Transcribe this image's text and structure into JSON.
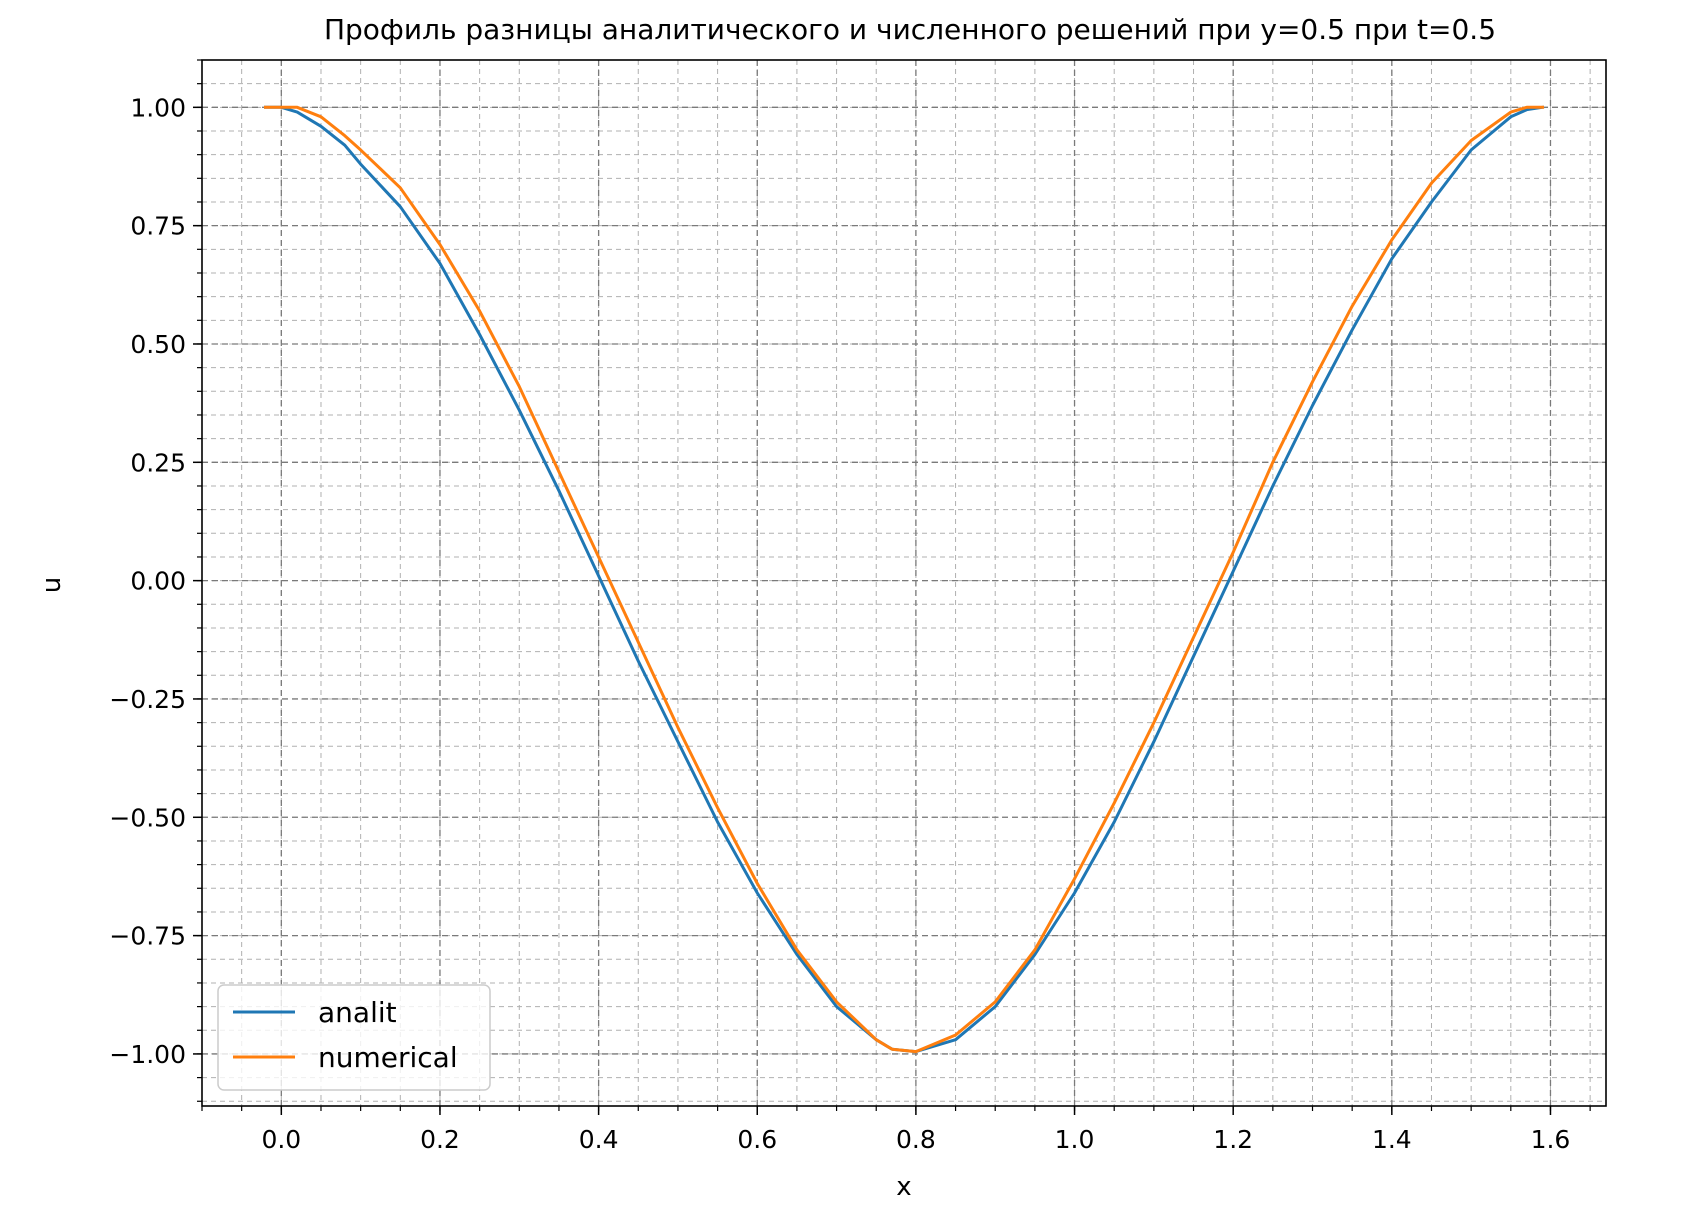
{
  "chart_data": {
    "type": "line",
    "title": "Профиль разницы аналитического и численного решений при y=0.5  при t=0.5",
    "xlabel": "x",
    "ylabel": "u",
    "xlim": [
      -0.1,
      1.67
    ],
    "ylim": [
      -1.11,
      1.1
    ],
    "x_ticks": [
      0.0,
      0.2,
      0.4,
      0.6,
      0.8,
      1.0,
      1.2,
      1.4,
      1.6
    ],
    "x_tick_labels": [
      "0.0",
      "0.2",
      "0.4",
      "0.6",
      "0.8",
      "1.0",
      "1.2",
      "1.4",
      "1.6"
    ],
    "y_ticks": [
      1.0,
      0.75,
      0.5,
      0.25,
      0.0,
      -0.25,
      -0.5,
      -0.75,
      -1.0
    ],
    "y_tick_labels": [
      "1.00",
      "0.75",
      "0.50",
      "0.25",
      "0.00",
      "−0.25",
      "−0.50",
      "−0.75",
      "−1.00"
    ],
    "x_minor_step": 0.05,
    "y_minor_step": 0.05,
    "grid": true,
    "grid_style": "dashed",
    "legend_position": "lower-left",
    "series": [
      {
        "name": "analit",
        "color": "#1f77b4",
        "x": [
          -0.02,
          0.0,
          0.02,
          0.05,
          0.08,
          0.1,
          0.15,
          0.2,
          0.25,
          0.3,
          0.35,
          0.4,
          0.45,
          0.5,
          0.55,
          0.6,
          0.65,
          0.7,
          0.75,
          0.77,
          0.8,
          0.85,
          0.9,
          0.95,
          1.0,
          1.05,
          1.1,
          1.15,
          1.2,
          1.25,
          1.3,
          1.35,
          1.4,
          1.45,
          1.5,
          1.55,
          1.57,
          1.59
        ],
        "values": [
          1.0,
          1.0,
          0.99,
          0.96,
          0.92,
          0.88,
          0.79,
          0.67,
          0.52,
          0.36,
          0.19,
          0.01,
          -0.17,
          -0.34,
          -0.51,
          -0.66,
          -0.79,
          -0.9,
          -0.97,
          -0.99,
          -0.995,
          -0.97,
          -0.9,
          -0.79,
          -0.66,
          -0.51,
          -0.34,
          -0.16,
          0.02,
          0.2,
          0.37,
          0.53,
          0.68,
          0.8,
          0.91,
          0.98,
          0.995,
          1.0
        ]
      },
      {
        "name": "numerical",
        "color": "#ff7f0e",
        "x": [
          -0.02,
          0.0,
          0.02,
          0.05,
          0.08,
          0.1,
          0.15,
          0.2,
          0.25,
          0.3,
          0.35,
          0.4,
          0.45,
          0.5,
          0.55,
          0.6,
          0.65,
          0.7,
          0.75,
          0.77,
          0.8,
          0.85,
          0.9,
          0.95,
          1.0,
          1.05,
          1.1,
          1.15,
          1.2,
          1.25,
          1.3,
          1.35,
          1.4,
          1.45,
          1.5,
          1.55,
          1.57,
          1.59
        ],
        "values": [
          1.0,
          1.0,
          1.0,
          0.98,
          0.94,
          0.91,
          0.83,
          0.71,
          0.57,
          0.41,
          0.23,
          0.05,
          -0.13,
          -0.31,
          -0.48,
          -0.64,
          -0.78,
          -0.89,
          -0.97,
          -0.99,
          -0.995,
          -0.96,
          -0.89,
          -0.78,
          -0.63,
          -0.47,
          -0.3,
          -0.12,
          0.06,
          0.25,
          0.42,
          0.58,
          0.72,
          0.84,
          0.93,
          0.99,
          1.0,
          1.0
        ]
      }
    ]
  }
}
